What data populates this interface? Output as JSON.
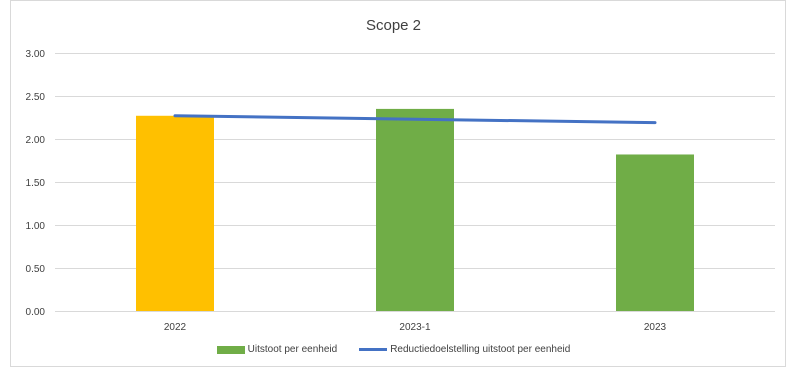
{
  "chart_data": {
    "type": "bar",
    "title": "Scope 2",
    "categories": [
      "2022",
      "2023-1",
      "2023"
    ],
    "series": [
      {
        "name": "Uitstoot per eenheid",
        "type": "bar",
        "values": [
          2.27,
          2.35,
          1.82
        ],
        "colors": [
          "#ffc000",
          "#70ad47",
          "#70ad47"
        ],
        "legend_color": "#70ad47"
      },
      {
        "name": "Reductiedoelstelling uitstoot per eenheid",
        "type": "line",
        "values": [
          2.27,
          2.23,
          2.19
        ],
        "color": "#4472c4"
      }
    ],
    "ylim": [
      0,
      3
    ],
    "yticks": [
      "0.00",
      "0.50",
      "1.00",
      "1.50",
      "2.00",
      "2.50",
      "3.00"
    ],
    "grid": true,
    "legend_position": "bottom"
  }
}
